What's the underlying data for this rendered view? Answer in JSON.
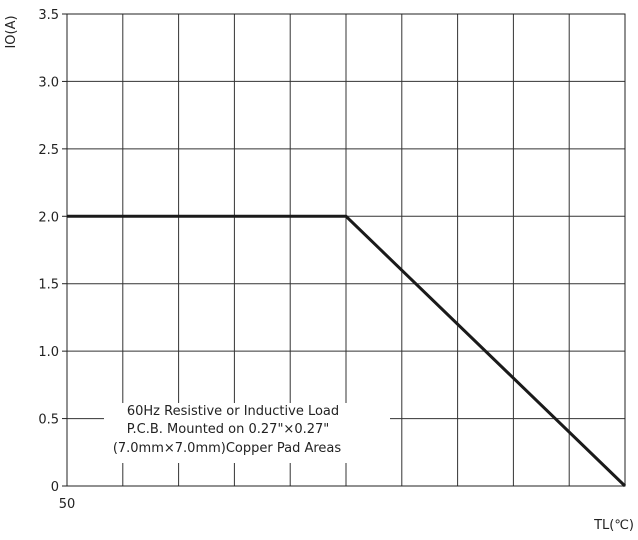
{
  "chart_data": {
    "type": "line",
    "title": "",
    "xlabel": "TL(℃)",
    "ylabel": "IO(A)",
    "xlim": [
      50,
      150
    ],
    "ylim": [
      0,
      3.5
    ],
    "x_tick_labels": [
      {
        "value": 50,
        "label": "50"
      }
    ],
    "y_ticks": [
      {
        "value": 0,
        "label": "0"
      },
      {
        "value": 0.5,
        "label": "0.5"
      },
      {
        "value": 1.0,
        "label": "1.0"
      },
      {
        "value": 1.5,
        "label": "1.5"
      },
      {
        "value": 2.0,
        "label": "2.0"
      },
      {
        "value": 2.5,
        "label": "2.5"
      },
      {
        "value": 3.0,
        "label": "3.0"
      },
      {
        "value": 3.5,
        "label": "3.5"
      }
    ],
    "grid": true,
    "x_grid_divisions": 10,
    "series": [
      {
        "x": [
          50,
          100,
          150
        ],
        "y": [
          2.0,
          2.0,
          0
        ],
        "color": "#1a1a1a"
      }
    ],
    "annotation": [
      "60Hz Resistive or Inductive Load",
      "P.C.B. Mounted on 0.27\"×0.27\"",
      "(7.0mm×7.0mm)Copper Pad Areas"
    ]
  }
}
